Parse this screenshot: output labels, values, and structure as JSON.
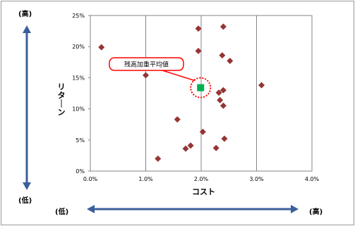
{
  "chart_data": {
    "type": "scatter",
    "xlabel": "コスト",
    "ylabel": "リターン",
    "xlim": [
      0.0,
      0.04
    ],
    "ylim": [
      0.0,
      0.25
    ],
    "x_ticks": [
      "0.0%",
      "1.0%",
      "2.0%",
      "3.0%",
      "4.0%"
    ],
    "y_ticks": [
      "0%",
      "5%",
      "10%",
      "15%",
      "20%",
      "25%"
    ],
    "grid": "vertical",
    "series": [
      {
        "marker": "diamond",
        "color": "#943634",
        "points": [
          {
            "x": 0.002,
            "y": 0.199
          },
          {
            "x": 0.01,
            "y": 0.154
          },
          {
            "x": 0.0122,
            "y": 0.02
          },
          {
            "x": 0.0157,
            "y": 0.083
          },
          {
            "x": 0.0172,
            "y": 0.036
          },
          {
            "x": 0.0181,
            "y": 0.041
          },
          {
            "x": 0.0195,
            "y": 0.229
          },
          {
            "x": 0.0195,
            "y": 0.193
          },
          {
            "x": 0.0203,
            "y": 0.063
          },
          {
            "x": 0.0227,
            "y": 0.037
          },
          {
            "x": 0.0232,
            "y": 0.126
          },
          {
            "x": 0.0234,
            "y": 0.114
          },
          {
            "x": 0.0238,
            "y": 0.186
          },
          {
            "x": 0.024,
            "y": 0.232
          },
          {
            "x": 0.024,
            "y": 0.13
          },
          {
            "x": 0.024,
            "y": 0.105
          },
          {
            "x": 0.0242,
            "y": 0.052
          },
          {
            "x": 0.0252,
            "y": 0.177
          },
          {
            "x": 0.0309,
            "y": 0.138
          }
        ]
      },
      {
        "marker": "square",
        "color": "#00b050",
        "points": [
          {
            "x": 0.0199,
            "y": 0.134
          }
        ]
      }
    ],
    "annotation": {
      "text": "残高加重平均値"
    },
    "axis_indicators": {
      "y_high": "(高)",
      "y_low": "(低)",
      "x_low": "(低)",
      "x_high": "(高)",
      "arrow_color": "#3a5f9a"
    }
  }
}
